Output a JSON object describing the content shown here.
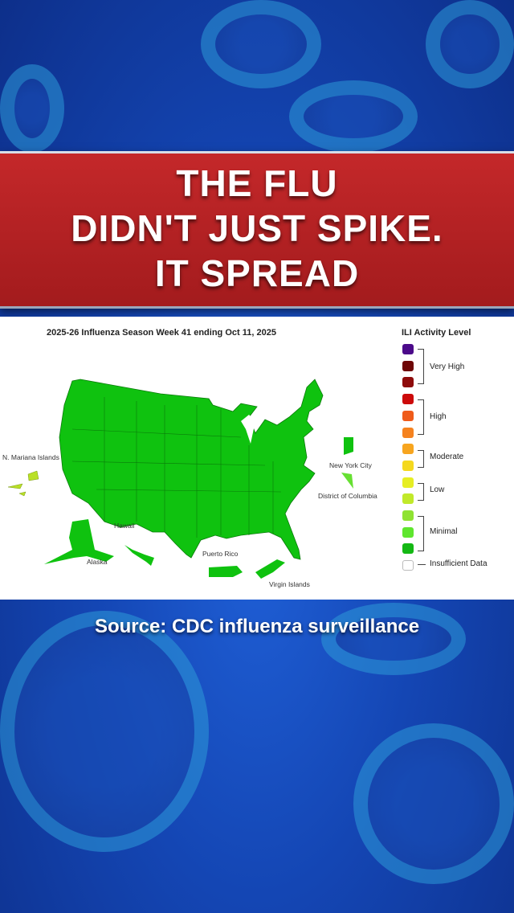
{
  "headline": {
    "line1": "THE FLU",
    "line2": "DIDN'T JUST SPIKE.",
    "line3": "IT SPREAD"
  },
  "map": {
    "title": "2025-26 Influenza Season Week 41 ending Oct 11, 2025",
    "labels": {
      "nmi": "N. Mariana Islands",
      "nyc": "New York City",
      "dc": "District of Columbia",
      "hawaii": "Hawaii",
      "alaska": "Alaska",
      "pr": "Puerto Rico",
      "vi": "Virgin Islands"
    },
    "colors": {
      "minimal_dark": "#0fc20f",
      "minimal_light": "#66e032",
      "low": "#b9e027"
    }
  },
  "legend": {
    "title": "ILI Activity Level",
    "swatches": [
      "#4b0a8a",
      "#6e0606",
      "#8e0b0b",
      "#cc0a0a",
      "#ef5b1a",
      "#f5821f",
      "#f7a51f",
      "#f4d81e",
      "#e6ee24",
      "#c1e92a",
      "#8fe232",
      "#5fe62e",
      "#14b814",
      "#ffffff"
    ],
    "groups": {
      "very_high": "Very High",
      "high": "High",
      "moderate": "Moderate",
      "low": "Low",
      "minimal": "Minimal",
      "insufficient": "Insufficient Data"
    }
  },
  "source": "Source: CDC influenza surveillance"
}
